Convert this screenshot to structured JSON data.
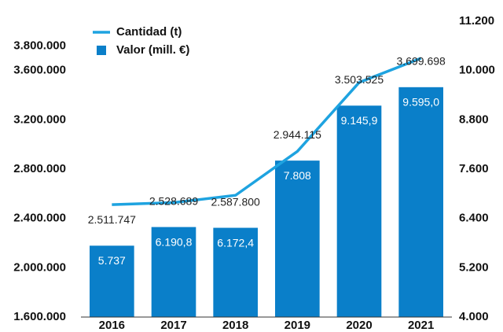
{
  "chart_data": {
    "type": "bar_line",
    "categories": [
      "2016",
      "2017",
      "2018",
      "2019",
      "2020",
      "2021"
    ],
    "series": [
      {
        "name": "Cantidad (t)",
        "type": "line",
        "color": "#1ea3e0",
        "axis": "y",
        "values": [
          2511747,
          2528689,
          2587800,
          2944115,
          3503525,
          3699698
        ],
        "value_labels": [
          "2.511.747",
          "2.528.689",
          "2.587.800",
          "2.944.115",
          "3.503.525",
          "3.699.698"
        ]
      },
      {
        "name": "Valor (mill. €)",
        "type": "bar",
        "color": "#0a7fc9",
        "axis": "y2",
        "values": [
          5737,
          6190.8,
          6172.4,
          7808,
          9145.9,
          9595.0
        ],
        "value_labels": [
          "5.737",
          "6.190,8",
          "6.172,4",
          "7.808",
          "9.145,9",
          "9.595,0"
        ]
      }
    ],
    "ylim": [
      1600000,
      4000000
    ],
    "yticks": [
      {
        "value": 1600000,
        "label": "1.600.000"
      },
      {
        "value": 2000000,
        "label": "2.000.000"
      },
      {
        "value": 2400000,
        "label": "2.400.000"
      },
      {
        "value": 2800000,
        "label": "2.800.000"
      },
      {
        "value": 3200000,
        "label": "3.200.000"
      },
      {
        "value": 3600000,
        "label": "3.600.000"
      },
      {
        "value": 3800000,
        "label": "3.800.000"
      }
    ],
    "y2lim": [
      4000,
      11200
    ],
    "y2ticks": [
      {
        "value": 4000,
        "label": "4.000"
      },
      {
        "value": 5200,
        "label": "5.200"
      },
      {
        "value": 6400,
        "label": "6.400"
      },
      {
        "value": 7600,
        "label": "7.600"
      },
      {
        "value": 8800,
        "label": "8.800"
      },
      {
        "value": 10000,
        "label": "10.000"
      },
      {
        "value": 11200,
        "label": "11.200"
      }
    ],
    "legend": "top-left"
  }
}
